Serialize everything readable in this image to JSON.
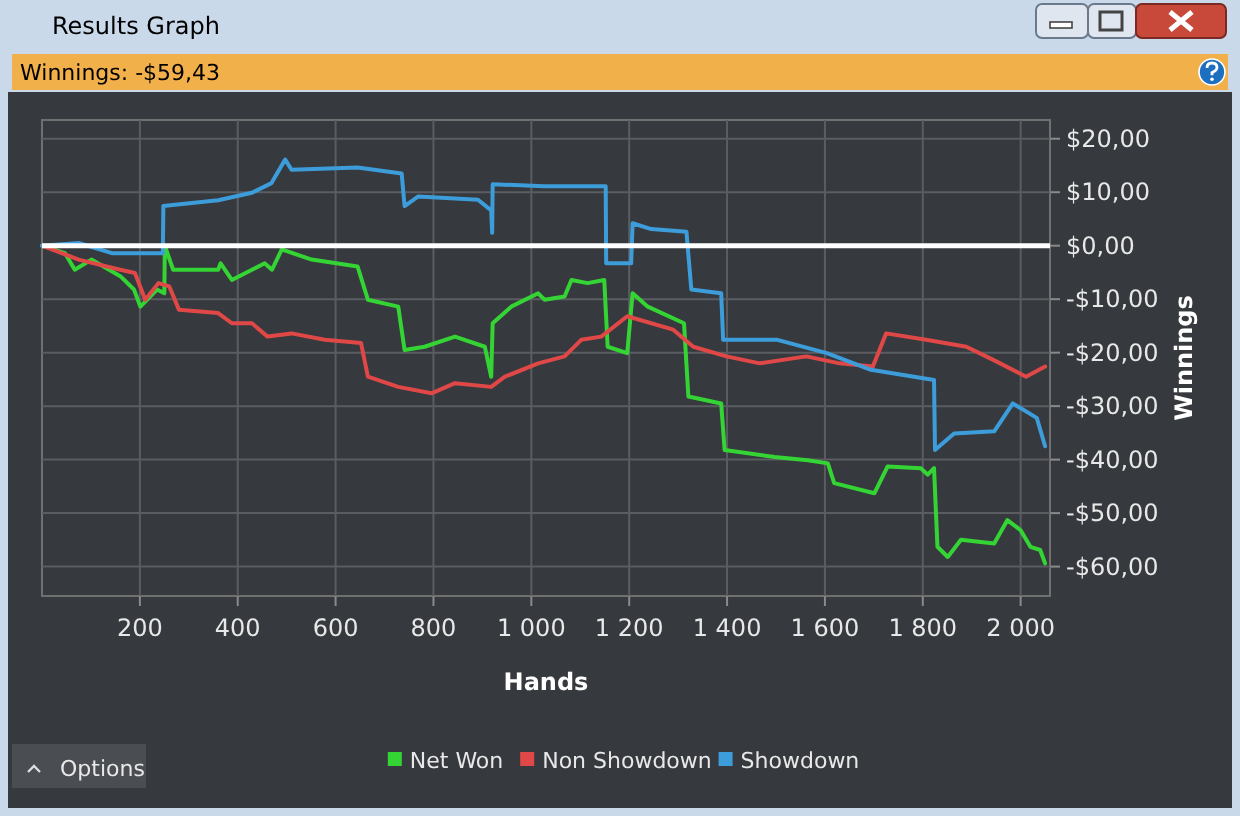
{
  "chart_data": {
    "type": "line",
    "title": "Results Graph",
    "subtitle": "Winnings: -$59,43",
    "xlabel": "Hands",
    "ylabel": "Winnings",
    "annotations": [
      "Options"
    ],
    "xlim": [
      0,
      2060
    ],
    "ylim": [
      -65.5,
      23.5
    ],
    "xticks": [
      200,
      400,
      600,
      800,
      {
        "value": 1000,
        "label": "1 000"
      },
      {
        "value": 1200,
        "label": "1 200"
      },
      {
        "value": 1400,
        "label": "1 400"
      },
      {
        "value": 1600,
        "label": "1 600"
      },
      {
        "value": 1800,
        "label": "1 800"
      },
      {
        "value": 2000,
        "label": "2 000"
      }
    ],
    "yticks": [
      {
        "value": 20,
        "label": "$20,00"
      },
      {
        "value": 10,
        "label": "$10,00"
      },
      {
        "value": 0,
        "label": "$0,00"
      },
      {
        "value": -10,
        "label": "-$10,00"
      },
      {
        "value": -20,
        "label": "-$20,00"
      },
      {
        "value": -30,
        "label": "-$30,00"
      },
      {
        "value": -40,
        "label": "-$40,00"
      },
      {
        "value": -50,
        "label": "-$50,00"
      },
      {
        "value": -60,
        "label": "-$60,00"
      }
    ],
    "grid": true,
    "legend": "bottom",
    "marker": "none",
    "line_style": "solid",
    "ref_lines": [
      {
        "axis": "y",
        "value": 0,
        "color": "#ffffff"
      }
    ],
    "series": [
      {
        "name": "Net Won",
        "color": "#35d435",
        "x": [
          0,
          47,
          67,
          101,
          160,
          188,
          201,
          235,
          250,
          251,
          268,
          360,
          365,
          388,
          429,
          455,
          470,
          490,
          551,
          645,
          666,
          728,
          741,
          782,
          844,
          905,
          918,
          921,
          959,
          1014,
          1027,
          1068,
          1082,
          1115,
          1149,
          1156,
          1196,
          1207,
          1238,
          1312,
          1321,
          1388,
          1395,
          1497,
          1565,
          1606,
          1619,
          1701,
          1728,
          1796,
          1810,
          1823,
          1830,
          1851,
          1878,
          1946,
          1973,
          2000,
          2020,
          2040,
          2050
        ],
        "values": [
          0,
          -1.4,
          -4.5,
          -2.6,
          -5.7,
          -8.2,
          -11.4,
          -8.2,
          -8.9,
          0,
          -4.5,
          -4.5,
          -3.3,
          -6.4,
          -4.5,
          -3.3,
          -4.5,
          -0.7,
          -2.6,
          -3.9,
          -10.1,
          -11.4,
          -19.5,
          -18.9,
          -17,
          -18.9,
          -24.5,
          -14.5,
          -11.4,
          -8.9,
          -10.1,
          -9.5,
          -6.4,
          -7,
          -6.4,
          -18.9,
          -20.1,
          -8.9,
          -11.4,
          -14.5,
          -28.2,
          -29.5,
          -38.2,
          -39.5,
          -40.1,
          -40.7,
          -44.4,
          -46.3,
          -41.3,
          -41.6,
          -42.8,
          -41.6,
          -56.3,
          -58.2,
          -55,
          -55.7,
          -51.3,
          -53.2,
          -56.3,
          -56.9,
          -59.4
        ]
      },
      {
        "name": "Non Showdown",
        "color": "#e04848",
        "x": [
          0,
          75,
          160,
          190,
          211,
          238,
          260,
          280,
          360,
          388,
          429,
          461,
          510,
          578,
          652,
          666,
          728,
          796,
          844,
          918,
          946,
          1014,
          1068,
          1102,
          1143,
          1196,
          1290,
          1331,
          1399,
          1467,
          1562,
          1630,
          1698,
          1725,
          1807,
          1889,
          1943,
          2011,
          2050
        ],
        "values": [
          0,
          -2.6,
          -4.5,
          -5.1,
          -10.1,
          -7,
          -7.6,
          -12,
          -12.6,
          -14.5,
          -14.5,
          -17,
          -16.4,
          -17.6,
          -18.2,
          -24.5,
          -26.4,
          -27.6,
          -25.7,
          -26.4,
          -24.5,
          -22,
          -20.7,
          -17.6,
          -17,
          -13.2,
          -15.7,
          -18.9,
          -20.7,
          -22,
          -20.7,
          -22,
          -22.6,
          -16.4,
          -17.6,
          -18.9,
          -21.3,
          -24.5,
          -22.6
        ]
      },
      {
        "name": "Showdown",
        "color": "#3d9ddb",
        "x": [
          0,
          75,
          143,
          247,
          248,
          360,
          429,
          469,
          497,
          510,
          645,
          735,
          741,
          769,
          891,
          918,
          920,
          921,
          1027,
          1152,
          1153,
          1204,
          1207,
          1245,
          1317,
          1327,
          1388,
          1392,
          1503,
          1604,
          1694,
          1823,
          1825,
          1864,
          1946,
          1984,
          2033,
          2050
        ],
        "values": [
          0,
          0.5,
          -1.4,
          -1.4,
          7.4,
          8.5,
          9.9,
          11.7,
          16.1,
          14.2,
          14.6,
          13.5,
          7.4,
          9.2,
          8.6,
          6.6,
          2.4,
          11.5,
          11.1,
          11.1,
          -3.3,
          -3.3,
          4.2,
          3.1,
          2.6,
          -8.2,
          -8.9,
          -17.6,
          -17.6,
          -20.1,
          -23.2,
          -25.1,
          -38.2,
          -35.1,
          -34.7,
          -29.5,
          -32.2,
          -37.5
        ]
      }
    ]
  }
}
